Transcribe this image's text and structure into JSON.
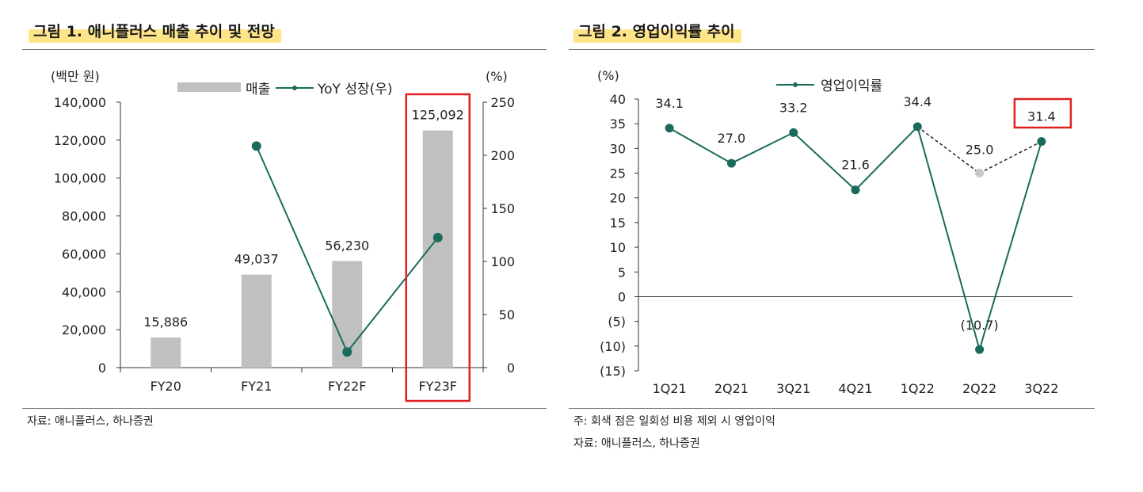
{
  "figure1": {
    "title": "그림 1. 애니플러스 매출 추이 및 전망",
    "source": "자료: 애니플러스, 하나증권",
    "chart_data": {
      "type": "bar",
      "categories": [
        "FY20",
        "FY21",
        "FY22F",
        "FY23F"
      ],
      "series": [
        {
          "name": "매출",
          "type": "bar",
          "axis": "left",
          "values": [
            15886,
            49037,
            56230,
            125092
          ],
          "labels": [
            "15,886",
            "49,037",
            "56,230",
            "125,092"
          ],
          "color": "#c0c0c0"
        },
        {
          "name": "YoY 성장(우)",
          "type": "line",
          "axis": "right",
          "values": [
            null,
            208.7,
            14.7,
            122.5
          ],
          "color": "#1a6b5c"
        }
      ],
      "y_left": {
        "unit": "(백만 원)",
        "ylim": [
          0,
          140000
        ],
        "ticks": [
          0,
          20000,
          40000,
          60000,
          80000,
          100000,
          120000,
          140000
        ],
        "tick_labels": [
          "0",
          "20,000",
          "40,000",
          "60,000",
          "80,000",
          "100,000",
          "120,000",
          "140,000"
        ]
      },
      "y_right": {
        "unit": "(%)",
        "ylim": [
          0,
          250
        ],
        "ticks": [
          0,
          50,
          100,
          150,
          200,
          250
        ],
        "tick_labels": [
          "0",
          "50",
          "100",
          "150",
          "200",
          "250"
        ]
      },
      "legend": "top-center",
      "highlight": {
        "category": "FY23F",
        "color": "#e02020"
      }
    }
  },
  "figure2": {
    "title": "그림 2. 영업이익률 추이",
    "note": "주: 회색 점은 일회성 비용 제외 시 영업이익",
    "source": "자료: 애니플러스, 하나증권",
    "chart_data": {
      "type": "line",
      "categories": [
        "1Q21",
        "2Q21",
        "3Q21",
        "4Q21",
        "1Q22",
        "2Q22",
        "3Q22"
      ],
      "series": [
        {
          "name": "영업이익률",
          "values": [
            34.1,
            27.0,
            33.2,
            21.6,
            34.4,
            -10.7,
            31.4
          ],
          "color": "#1a6b5c"
        },
        {
          "name": "",
          "style": "dashed",
          "values": [
            null,
            null,
            null,
            null,
            34.4,
            25.0,
            31.4
          ],
          "color": "#222222"
        }
      ],
      "labels": [
        "34.1",
        "27.0",
        "33.2",
        "21.6",
        "34.4",
        "(10.7)",
        "31.4"
      ],
      "excl_label": "25.0",
      "y": {
        "unit": "(%)",
        "ylim": [
          -15,
          40
        ],
        "ticks": [
          40,
          35,
          30,
          25,
          20,
          15,
          10,
          5,
          0,
          -5,
          -10,
          -15
        ],
        "tick_labels": [
          "40",
          "35",
          "30",
          "25",
          "20",
          "15",
          "10",
          "5",
          "0",
          "(5)",
          "(10)",
          "(15)"
        ]
      },
      "legend": "top-center",
      "highlight": {
        "category": "3Q22",
        "color": "#e02020"
      },
      "grey_point_color": "#c8c8c8"
    }
  }
}
